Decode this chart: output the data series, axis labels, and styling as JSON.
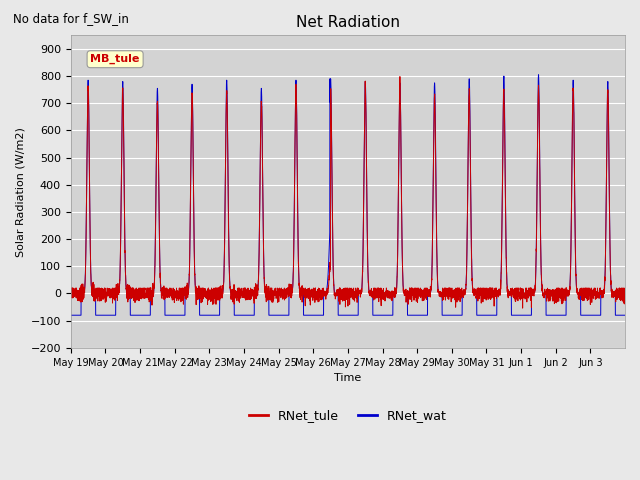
{
  "title": "Net Radiation",
  "subtitle": "No data for f_SW_in",
  "ylabel": "Solar Radiation (W/m2)",
  "xlabel": "Time",
  "ylim": [
    -200,
    950
  ],
  "yticks": [
    -200,
    -100,
    0,
    100,
    200,
    300,
    400,
    500,
    600,
    700,
    800,
    900
  ],
  "xtick_labels": [
    "May 19",
    "May 20",
    "May 21",
    "May 22",
    "May 23",
    "May 24",
    "May 25",
    "May 26",
    "May 27",
    "May 28",
    "May 29",
    "May 30",
    "May 31",
    "Jun 1",
    "Jun 2",
    "Jun 3"
  ],
  "legend_entries": [
    "RNet_tule",
    "RNet_wat"
  ],
  "legend_colors": [
    "#cc0000",
    "#0000cc"
  ],
  "watermark_text": "MB_tule",
  "background_color": "#e8e8e8",
  "plot_bg_color": "#d3d3d3",
  "line_color_tule": "#cc0000",
  "line_color_wat": "#0000cc",
  "n_days": 16,
  "peak_values_tule": [
    760,
    760,
    710,
    740,
    745,
    710,
    760,
    750,
    770,
    770,
    730,
    750,
    750,
    760,
    760,
    750
  ],
  "peak_values_wat": [
    785,
    780,
    755,
    770,
    785,
    755,
    785,
    790,
    780,
    775,
    775,
    790,
    800,
    805,
    785,
    780
  ],
  "night_base": -80,
  "pts_per_day": 288
}
